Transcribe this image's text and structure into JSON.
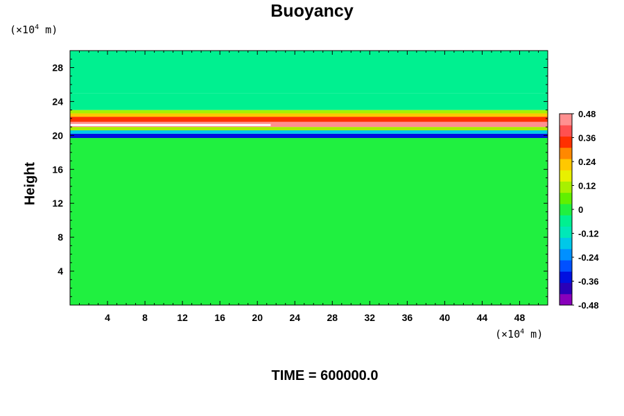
{
  "chart_data": {
    "type": "heatmap",
    "title": "Buoyancy",
    "ylabel": "Height",
    "xlabel": "",
    "x_unit_prefix": "(×10",
    "x_unit_exp": "4",
    "x_unit_suffix": " m)",
    "y_unit_prefix": "(×10",
    "y_unit_exp": "4",
    "y_unit_suffix": " m)",
    "footer": "TIME = 600000.0",
    "xlim": [
      0,
      51
    ],
    "ylim": [
      0,
      30
    ],
    "x_ticks": [
      4,
      8,
      12,
      16,
      20,
      24,
      28,
      32,
      36,
      40,
      44,
      48
    ],
    "x_tick_labels": [
      "4",
      "8",
      "12",
      "16",
      "20",
      "24",
      "28",
      "32",
      "36",
      "40",
      "44",
      "48"
    ],
    "y_ticks": [
      4,
      8,
      12,
      16,
      20,
      24,
      28
    ],
    "y_tick_labels": [
      "4",
      "8",
      "12",
      "16",
      "20",
      "24",
      "28"
    ],
    "colorbar": {
      "levels": [
        -0.48,
        -0.42,
        -0.36,
        -0.3,
        -0.24,
        -0.18,
        -0.12,
        -0.06,
        0,
        0.06,
        0.12,
        0.18,
        0.24,
        0.3,
        0.36,
        0.42,
        0.48
      ],
      "labels": [
        "-0.48",
        "-0.36",
        "-0.24",
        "-0.12",
        "0",
        "0.12",
        "0.24",
        "0.36",
        "0.48"
      ],
      "label_values": [
        -0.48,
        -0.36,
        -0.24,
        -0.12,
        0,
        0.12,
        0.24,
        0.36,
        0.48
      ],
      "colors": [
        "#8800bb",
        "#2a00b8",
        "#0010e0",
        "#0050ff",
        "#0090ff",
        "#00c8e8",
        "#00e8b8",
        "#00f090",
        "#20f040",
        "#60f000",
        "#a8f000",
        "#e8f000",
        "#ffc800",
        "#ff8800",
        "#ff3000",
        "#ff5050",
        "#ff9090"
      ]
    },
    "bands": [
      {
        "y0": 0.0,
        "y1": 19.7,
        "value": 0.0
      },
      {
        "y0": 19.7,
        "y1": 20.2,
        "value": -0.36
      },
      {
        "y0": 20.2,
        "y1": 20.6,
        "value": -0.2
      },
      {
        "y0": 20.6,
        "y1": 21.0,
        "value": 0.1
      },
      {
        "y0": 21.0,
        "y1": 21.6,
        "value": 0.5
      },
      {
        "y0": 21.6,
        "y1": 22.2,
        "value": 0.36
      },
      {
        "y0": 22.2,
        "y1": 22.6,
        "value": 0.24
      },
      {
        "y0": 22.6,
        "y1": 23.0,
        "value": 0.1
      },
      {
        "y0": 23.0,
        "y1": 25.0,
        "value": -0.06
      },
      {
        "y0": 25.0,
        "y1": 30.0,
        "value": -0.06
      }
    ]
  }
}
